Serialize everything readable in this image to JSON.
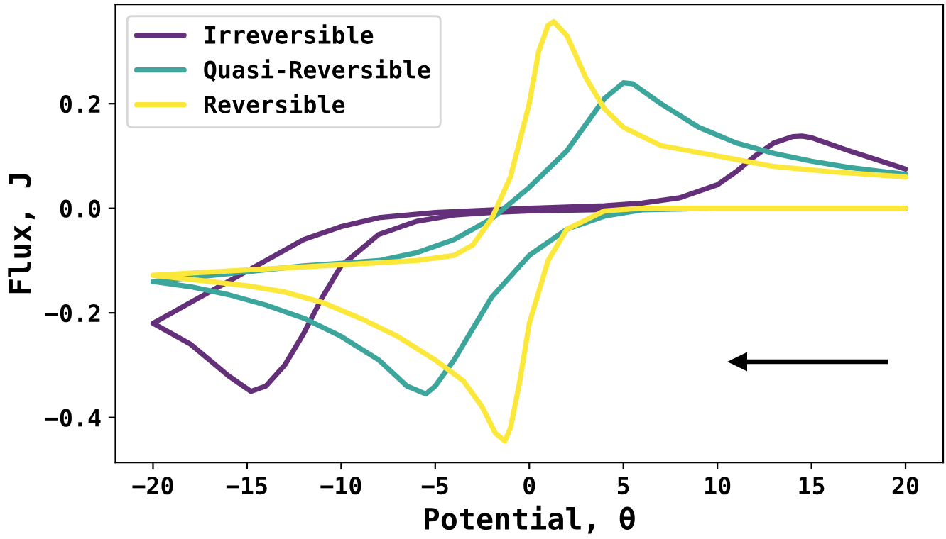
{
  "chart_data": {
    "type": "line",
    "xlabel": "Potential, θ",
    "ylabel": "Flux, J",
    "xlim": [
      -22,
      22
    ],
    "ylim": [
      -0.486,
      0.39
    ],
    "xticks": [
      {
        "value": -20,
        "label": "−20"
      },
      {
        "value": -15,
        "label": "−15"
      },
      {
        "value": -10,
        "label": "−10"
      },
      {
        "value": -5,
        "label": "−5"
      },
      0,
      5,
      10,
      15,
      20
    ],
    "yticks": [
      {
        "value": -0.4,
        "label": "−0.4"
      },
      {
        "value": -0.2,
        "label": "−0.2"
      },
      {
        "value": 0,
        "label": "0.0"
      },
      0.2
    ],
    "legend": "top left",
    "grid": false,
    "marker": "none",
    "line_style": "solid",
    "series": [
      {
        "name": "Irreversible",
        "color": "#64307a",
        "x": [
          20,
          10,
          5,
          0,
          -2,
          -4,
          -6,
          -8,
          -10,
          -11,
          -12,
          -13,
          -14,
          -14.8,
          -16,
          -17,
          -18,
          -20,
          -18,
          -16,
          -14,
          -12,
          -10,
          -8,
          -5,
          0,
          4,
          6,
          8,
          10,
          11,
          12,
          13,
          14,
          14.5,
          15,
          17,
          20
        ],
        "values": [
          0,
          0,
          -0.002,
          -0.005,
          -0.008,
          -0.013,
          -0.025,
          -0.05,
          -0.11,
          -0.17,
          -0.24,
          -0.3,
          -0.34,
          -0.35,
          -0.32,
          -0.29,
          -0.26,
          -0.22,
          -0.18,
          -0.14,
          -0.1,
          -0.06,
          -0.035,
          -0.018,
          -0.008,
          0,
          0.005,
          0.01,
          0.02,
          0.045,
          0.07,
          0.1,
          0.125,
          0.137,
          0.138,
          0.135,
          0.11,
          0.075
        ]
      },
      {
        "name": "Quasi-Reversible",
        "color": "#3ca59c",
        "x": [
          20,
          10,
          6,
          4,
          2,
          0,
          -2,
          -3,
          -4,
          -5,
          -5.5,
          -6.5,
          -8,
          -10,
          -12,
          -14,
          -16,
          -18,
          -20,
          -16,
          -12,
          -8,
          -6,
          -4,
          -2,
          0,
          2,
          3,
          4,
          5,
          5.5,
          7,
          9,
          11,
          13,
          15,
          17,
          20
        ],
        "values": [
          0,
          0,
          -0.003,
          -0.015,
          -0.04,
          -0.09,
          -0.17,
          -0.23,
          -0.29,
          -0.34,
          -0.355,
          -0.34,
          -0.29,
          -0.245,
          -0.21,
          -0.185,
          -0.165,
          -0.15,
          -0.14,
          -0.125,
          -0.11,
          -0.1,
          -0.085,
          -0.06,
          -0.02,
          0.04,
          0.11,
          0.16,
          0.21,
          0.24,
          0.238,
          0.2,
          0.155,
          0.125,
          0.105,
          0.09,
          0.078,
          0.065
        ]
      },
      {
        "name": "Reversible",
        "color": "#fbe83b",
        "x": [
          20,
          10,
          6,
          4,
          2,
          1,
          0,
          -0.5,
          -1,
          -1.3,
          -1.8,
          -2.5,
          -3.5,
          -5,
          -7,
          -9,
          -11,
          -13,
          -15,
          -17,
          -20,
          -15,
          -10,
          -6,
          -4,
          -3,
          -2,
          -1,
          0,
          0.5,
          1,
          1.3,
          2,
          3,
          4,
          5,
          7,
          10,
          13,
          16,
          20
        ],
        "values": [
          0,
          0,
          0,
          -0.005,
          -0.04,
          -0.1,
          -0.22,
          -0.33,
          -0.42,
          -0.445,
          -0.43,
          -0.38,
          -0.33,
          -0.29,
          -0.245,
          -0.21,
          -0.18,
          -0.16,
          -0.148,
          -0.14,
          -0.128,
          -0.118,
          -0.108,
          -0.1,
          -0.09,
          -0.07,
          -0.02,
          0.06,
          0.2,
          0.3,
          0.35,
          0.357,
          0.33,
          0.25,
          0.19,
          0.155,
          0.12,
          0.1,
          0.08,
          0.07,
          0.06
        ]
      }
    ]
  }
}
